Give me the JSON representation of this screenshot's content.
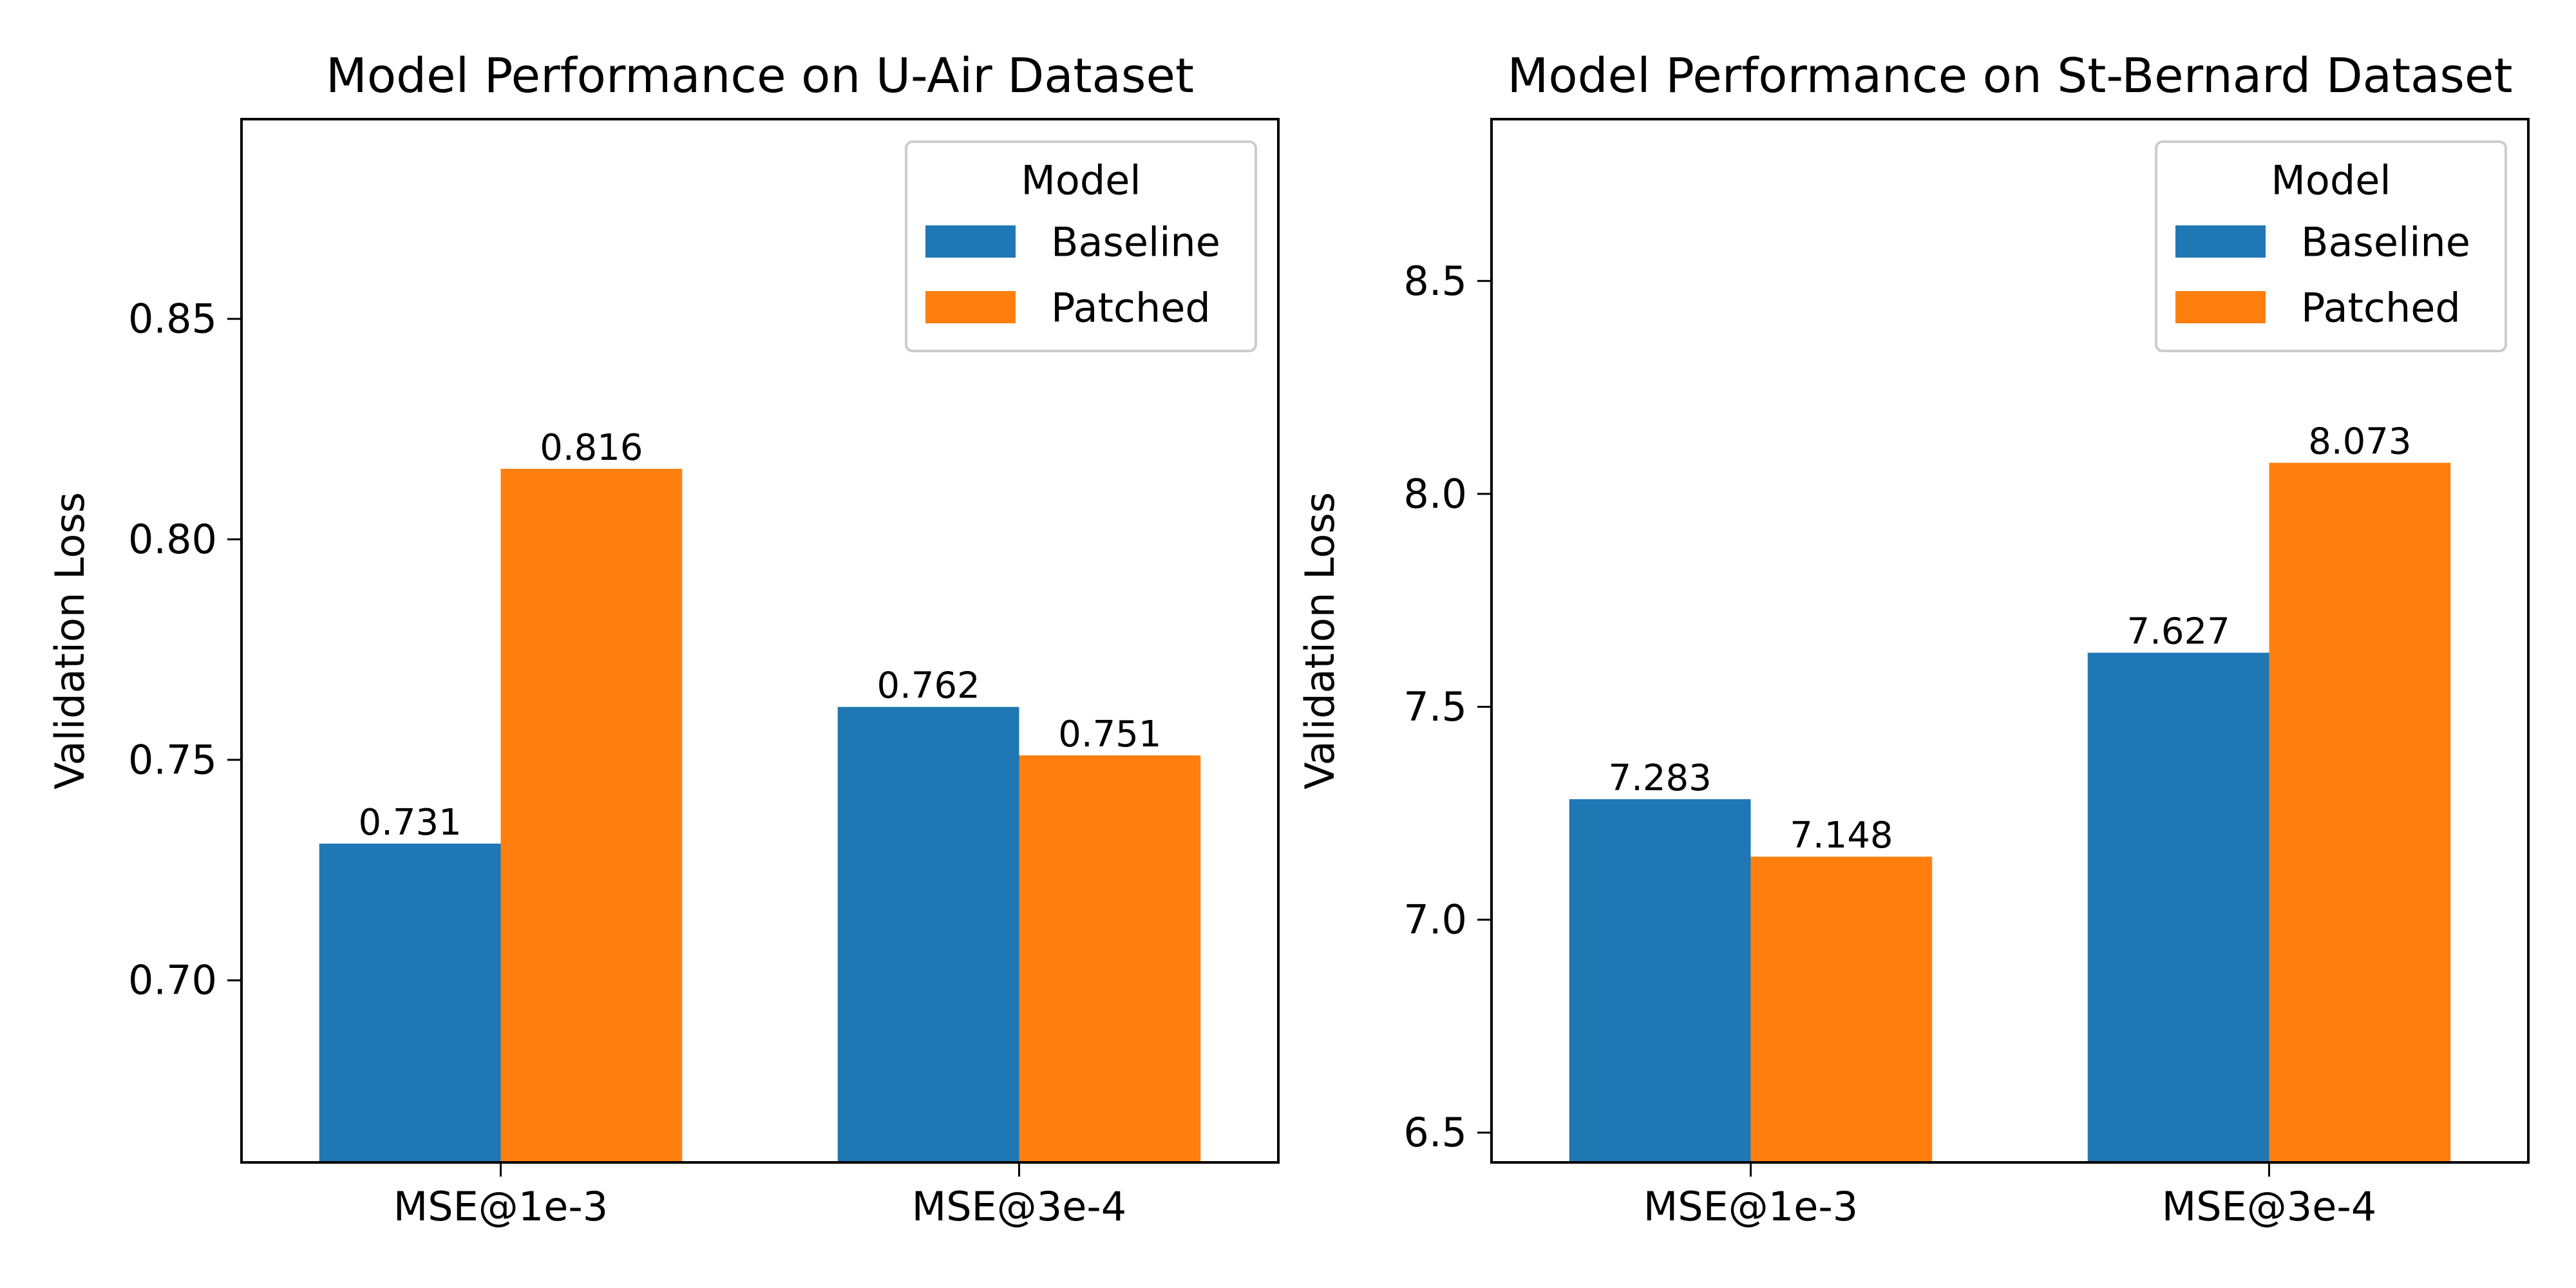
{
  "chart_data": [
    {
      "type": "bar",
      "title": "Model Performance on U-Air Dataset",
      "xlabel": "",
      "ylabel": "Validation Loss",
      "categories": [
        "MSE@1e-3",
        "MSE@3e-4"
      ],
      "series": [
        {
          "name": "Baseline",
          "values": [
            0.731,
            0.762
          ],
          "color": "#1f77b4"
        },
        {
          "name": "Patched",
          "values": [
            0.816,
            0.751
          ],
          "color": "#ff7f0e"
        }
      ],
      "value_labels": [
        [
          "0.731",
          "0.762"
        ],
        [
          "0.816",
          "0.751"
        ]
      ],
      "ylim": [
        0.6587,
        0.8953
      ],
      "yticks": [
        0.7,
        0.75,
        0.8,
        0.85
      ],
      "ytick_labels": [
        "0.70",
        "0.75",
        "0.80",
        "0.85"
      ],
      "legend": {
        "title": "Model",
        "position": "top-right"
      },
      "grid": false
    },
    {
      "type": "bar",
      "title": "Model Performance on St-Bernard Dataset",
      "xlabel": "",
      "ylabel": "Validation Loss",
      "categories": [
        "MSE@1e-3",
        "MSE@3e-4"
      ],
      "series": [
        {
          "name": "Baseline",
          "values": [
            7.283,
            7.627
          ],
          "color": "#1f77b4"
        },
        {
          "name": "Patched",
          "values": [
            7.148,
            8.073
          ],
          "color": "#ff7f0e"
        }
      ],
      "value_labels": [
        [
          "7.283",
          "7.627"
        ],
        [
          "7.148",
          "8.073"
        ]
      ],
      "ylim": [
        6.43,
        8.88
      ],
      "yticks": [
        6.5,
        7.0,
        7.5,
        8.0,
        8.5
      ],
      "ytick_labels": [
        "6.5",
        "7.0",
        "7.5",
        "8.0",
        "8.5"
      ],
      "legend": {
        "title": "Model",
        "position": "top-right"
      },
      "grid": false
    }
  ]
}
